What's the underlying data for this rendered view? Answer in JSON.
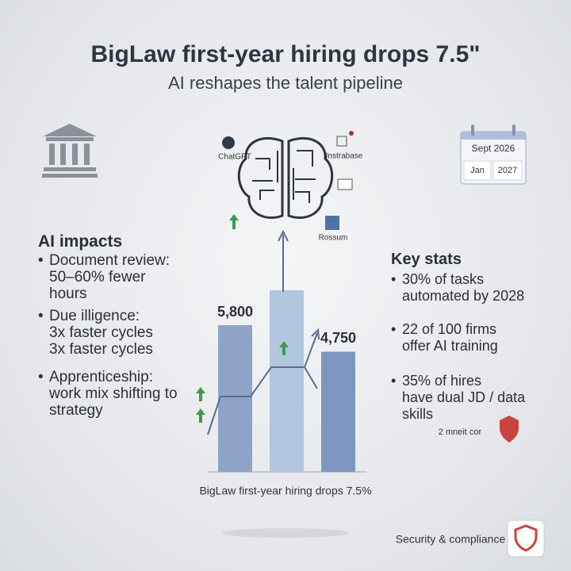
{
  "header": {
    "title": "BigLaw first-year hiring drops 7.5\"",
    "subtitle": "AI reshapes the talent pipeline"
  },
  "tools": [
    "ChatGPT",
    "Instrabase",
    "Rossum"
  ],
  "calendar": {
    "top": "Sept  2026",
    "left": "Jan",
    "right": "2027"
  },
  "left_panel": {
    "heading": "AI impacts",
    "items": [
      [
        "Document review:",
        "50–60% fewer",
        "hours"
      ],
      [
        "Due illigence:",
        "3x faster cycles",
        "3x faster cycles"
      ],
      [
        "Apprenticeship:",
        "work mix shifting to",
        "strategy"
      ]
    ]
  },
  "right_panel": {
    "heading": "Key stats",
    "items": [
      [
        "30% of tasks",
        "automated by 2028"
      ],
      [
        "22 of 100 firms",
        "offer AI training"
      ],
      [
        "35% of hires",
        "have dual JD / data",
        "skills"
      ]
    ],
    "note": "2 mneit cor"
  },
  "chart_data": {
    "type": "bar",
    "values": [
      5800,
      7180,
      4750
    ],
    "value_labels": [
      "5,800",
      null,
      "4,750"
    ],
    "colors": [
      "#8fa3c6",
      "#b3c6e0",
      "#7e96bf"
    ],
    "caption": "BigLaw first-year hiring drops 7.5%"
  },
  "footer": "Security & compliance"
}
